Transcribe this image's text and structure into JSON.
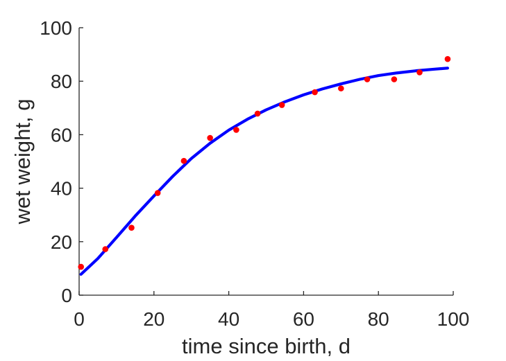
{
  "chart_data": {
    "type": "scatter",
    "title": "",
    "xlabel": "time since birth, d",
    "ylabel": "wet weight, g",
    "xlim": [
      0,
      100
    ],
    "ylim": [
      0,
      100
    ],
    "xticks": [
      0,
      20,
      40,
      60,
      80,
      100
    ],
    "yticks": [
      0,
      20,
      40,
      60,
      80,
      100
    ],
    "xtick_labels": [
      "0",
      "20",
      "40",
      "60",
      "80",
      "100"
    ],
    "ytick_labels": [
      "0",
      "20",
      "40",
      "60",
      "80",
      "100"
    ],
    "grid": false,
    "legend": "none",
    "series": [
      {
        "kind": "points",
        "color": "#ff0000",
        "x": [
          0.5,
          7,
          14,
          21,
          28,
          35,
          42,
          47.7,
          54.2,
          63,
          70,
          77,
          84.2,
          91,
          98.5
        ],
        "y": [
          10.6,
          17.2,
          25.2,
          38.2,
          50.2,
          58.8,
          61.8,
          67.9,
          71.1,
          75.9,
          77.3,
          80.7,
          80.7,
          83.3,
          88.3
        ]
      },
      {
        "kind": "line",
        "color": "#0000ff",
        "x": [
          0.5,
          5,
          10,
          15,
          20,
          25,
          30,
          35,
          40,
          45,
          50,
          55,
          60,
          65,
          70,
          75,
          80,
          85,
          90,
          95,
          98.5
        ],
        "y": [
          7.8,
          13.7,
          21.6,
          29.6,
          37.1,
          44.4,
          51.1,
          56.8,
          61.7,
          65.8,
          69.3,
          72.3,
          74.9,
          77.1,
          79.0,
          80.7,
          82.1,
          83.1,
          83.9,
          84.5,
          84.9
        ]
      }
    ]
  }
}
